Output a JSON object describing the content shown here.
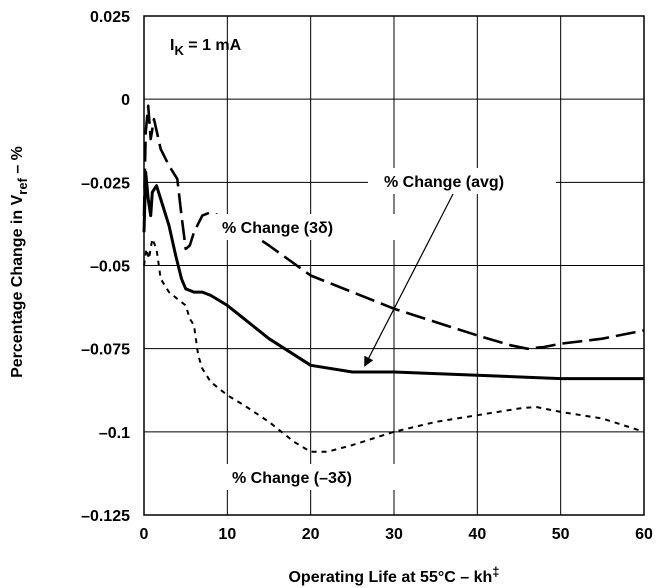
{
  "chart_data": {
    "type": "line",
    "title": "",
    "xlabel": "Operating Life at 55°C – kh‡",
    "xlabel_main": "Operating Life at 55°C – kh",
    "xlabel_sup": "‡",
    "ylabel_main": "Percentage Change in V",
    "ylabel_sub": "ref",
    "ylabel_tail": " – %",
    "xlim": [
      0,
      60
    ],
    "ylim": [
      -0.125,
      0.025
    ],
    "xticks": [
      0,
      10,
      20,
      30,
      40,
      50,
      60
    ],
    "xtick_labels": [
      "0",
      "10",
      "20",
      "30",
      "40",
      "50",
      "60"
    ],
    "yticks": [
      0.025,
      0,
      -0.025,
      -0.05,
      -0.075,
      -0.1,
      -0.125
    ],
    "ytick_labels": [
      "0.025",
      "0",
      "–0.025",
      "–0.05",
      "–0.075",
      "–0.1",
      "–0.125"
    ],
    "grid": true,
    "annotation_ik_main": "I",
    "annotation_ik_sub": "K",
    "annotation_ik_tail": " = 1 mA",
    "series": [
      {
        "name": "% Change  (3δ)",
        "style": "long-dash",
        "x": [
          0,
          0.2,
          0.5,
          0.8,
          1.2,
          2,
          3,
          4,
          4.5,
          5,
          5.5,
          6,
          7,
          8,
          10,
          12,
          15,
          20,
          25,
          30,
          35,
          40,
          44,
          46,
          48,
          50,
          55,
          60
        ],
        "y": [
          -0.035,
          -0.01,
          -0.002,
          -0.012,
          -0.006,
          -0.015,
          -0.02,
          -0.024,
          -0.035,
          -0.045,
          -0.044,
          -0.04,
          -0.035,
          -0.034,
          -0.036,
          -0.039,
          -0.044,
          -0.053,
          -0.058,
          -0.063,
          -0.067,
          -0.071,
          -0.074,
          -0.075,
          -0.0745,
          -0.0735,
          -0.072,
          -0.0695
        ]
      },
      {
        "name": "% Change  (avg)",
        "style": "solid",
        "x": [
          0,
          0.2,
          0.5,
          0.8,
          1,
          1.5,
          2,
          3,
          3.8,
          4.5,
          5,
          6,
          7,
          8,
          10,
          12,
          15,
          20,
          25,
          30,
          40,
          50,
          60
        ],
        "y": [
          -0.04,
          -0.022,
          -0.03,
          -0.035,
          -0.028,
          -0.026,
          -0.03,
          -0.038,
          -0.047,
          -0.054,
          -0.057,
          -0.058,
          -0.058,
          -0.059,
          -0.062,
          -0.066,
          -0.072,
          -0.08,
          -0.082,
          -0.082,
          -0.083,
          -0.084,
          -0.084
        ]
      },
      {
        "name": "% Change  (–3δ)",
        "style": "short-dash",
        "x": [
          0,
          0.3,
          0.6,
          1,
          1.5,
          2,
          3,
          4,
          5,
          5.5,
          6,
          6.5,
          7,
          8,
          10,
          12,
          15,
          18,
          20,
          22,
          25,
          30,
          35,
          40,
          45,
          47,
          50,
          55,
          60
        ],
        "y": [
          -0.05,
          -0.045,
          -0.048,
          -0.042,
          -0.045,
          -0.054,
          -0.058,
          -0.06,
          -0.062,
          -0.066,
          -0.068,
          -0.077,
          -0.081,
          -0.085,
          -0.089,
          -0.092,
          -0.097,
          -0.103,
          -0.106,
          -0.106,
          -0.104,
          -0.1,
          -0.097,
          -0.095,
          -0.093,
          -0.0925,
          -0.094,
          -0.096,
          -0.1
        ]
      }
    ],
    "annotations": [
      {
        "text": "% Change  (avg)",
        "arrow_to": [
          26,
          -0.082
        ]
      },
      {
        "text": "% Change  (3δ)"
      },
      {
        "text": "% Change  (–3δ)"
      }
    ]
  }
}
